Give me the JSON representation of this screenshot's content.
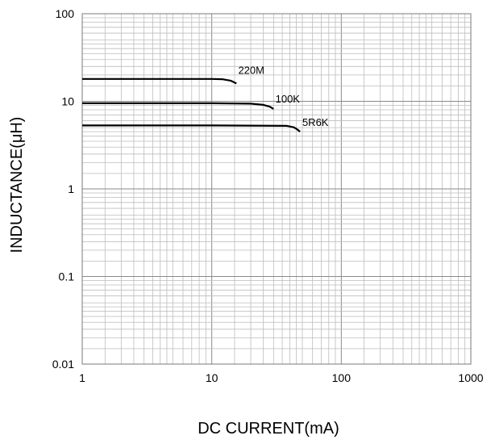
{
  "chart_data": {
    "type": "line",
    "title": "",
    "xlabel": "DC CURRENT(mA)",
    "ylabel": "INDUCTANCE(μH)",
    "x_scale": "log",
    "y_scale": "log",
    "xlim": [
      1,
      1000
    ],
    "ylim": [
      0.01,
      100
    ],
    "x_ticks": [
      1,
      10,
      100,
      1000
    ],
    "x_tick_labels": [
      "1",
      "10",
      "100",
      "1000"
    ],
    "y_ticks": [
      0.01,
      0.1,
      1,
      10,
      100
    ],
    "y_tick_labels": [
      "0.01",
      "0.1",
      "1",
      "10",
      "100"
    ],
    "grid": true,
    "series": [
      {
        "name": "220M",
        "color": "#000000",
        "points": [
          [
            1,
            18
          ],
          [
            5,
            18
          ],
          [
            10,
            18
          ],
          [
            12,
            17.9
          ],
          [
            14,
            17.2
          ],
          [
            15.5,
            16
          ]
        ],
        "label_at": [
          16,
          20.5
        ]
      },
      {
        "name": "100K",
        "color": "#000000",
        "points": [
          [
            1,
            9.5
          ],
          [
            10,
            9.5
          ],
          [
            20,
            9.4
          ],
          [
            25,
            9.1
          ],
          [
            28,
            8.7
          ],
          [
            30,
            8.2
          ]
        ],
        "label_at": [
          31,
          9.7
        ]
      },
      {
        "name": "5R6K",
        "color": "#000000",
        "points": [
          [
            1,
            5.3
          ],
          [
            10,
            5.3
          ],
          [
            38,
            5.25
          ],
          [
            43,
            5.05
          ],
          [
            46,
            4.75
          ],
          [
            48,
            4.5
          ]
        ],
        "label_at": [
          50,
          5.25
        ]
      }
    ]
  }
}
